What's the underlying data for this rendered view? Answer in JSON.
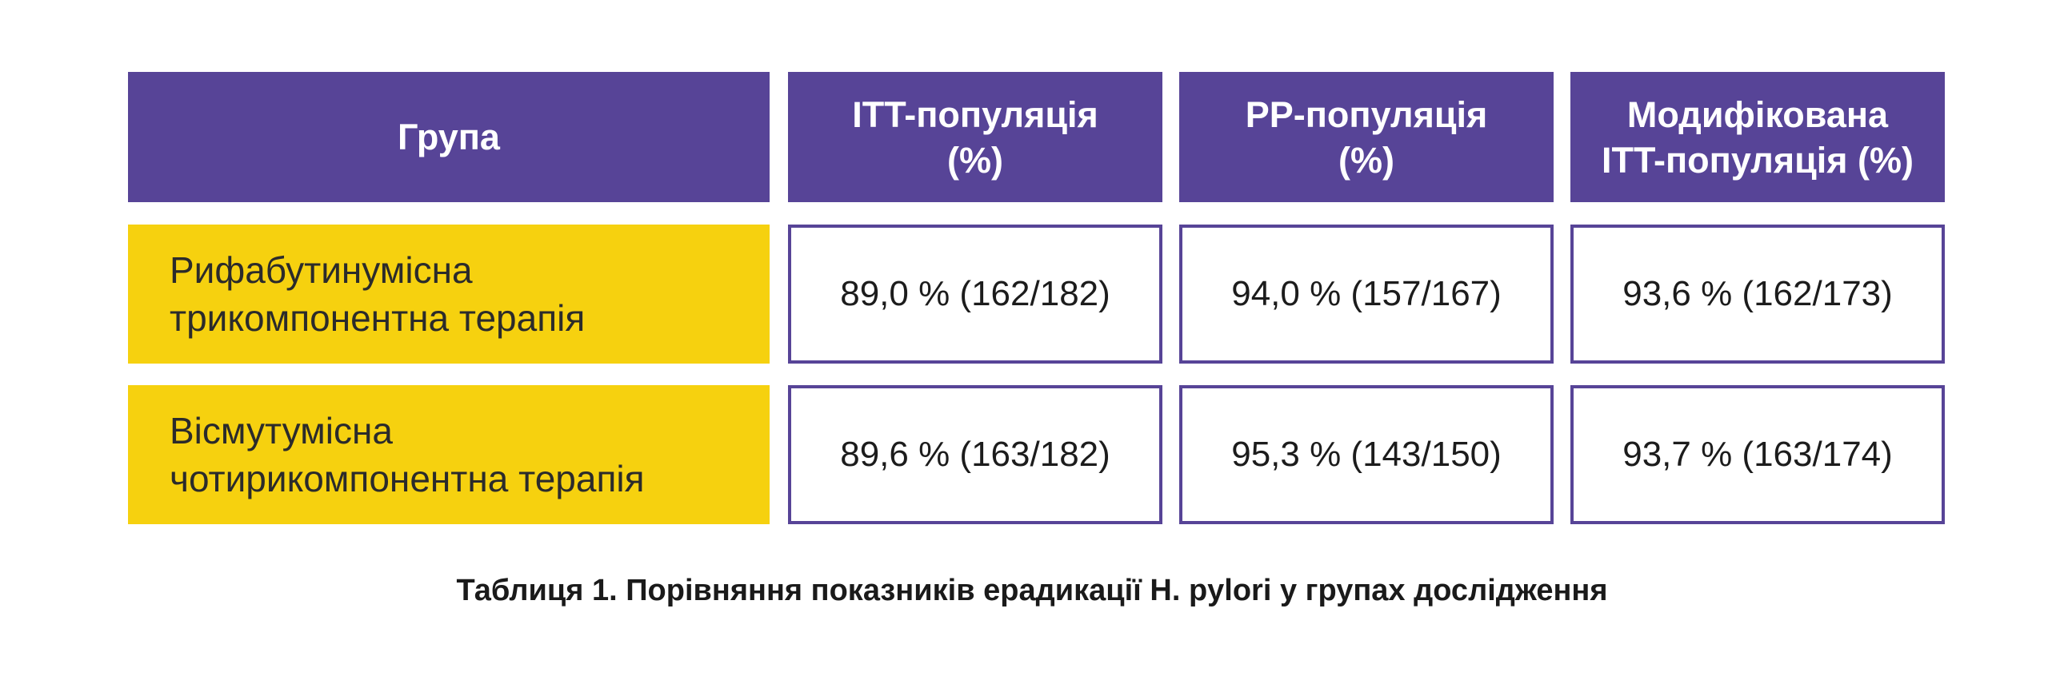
{
  "chart_data": {
    "type": "table",
    "columns": [
      "Група",
      "ITT-популяція\n(%)",
      "PP-популяція\n(%)",
      "Модифікована\nITT-популяція (%)"
    ],
    "rows": [
      {
        "group": "Рифабутинумісна\nтрикомпонентна терапія",
        "values": [
          "89,0 % (162/182)",
          "94,0 % (157/167)",
          "93,6 % (162/173)"
        ]
      },
      {
        "group": "Вісмутумісна\nчотирикомпонентна терапія",
        "values": [
          "89,6 % (163/182)",
          "95,3 % (143/150)",
          "93,7 % (163/174)"
        ]
      }
    ],
    "caption": "Таблиця 1. Порівняння показників ерадикації H. pylori у групах дослідження",
    "colors": {
      "header": "#574497",
      "group_cell": "#f6d10f",
      "value_border": "#574497"
    }
  }
}
